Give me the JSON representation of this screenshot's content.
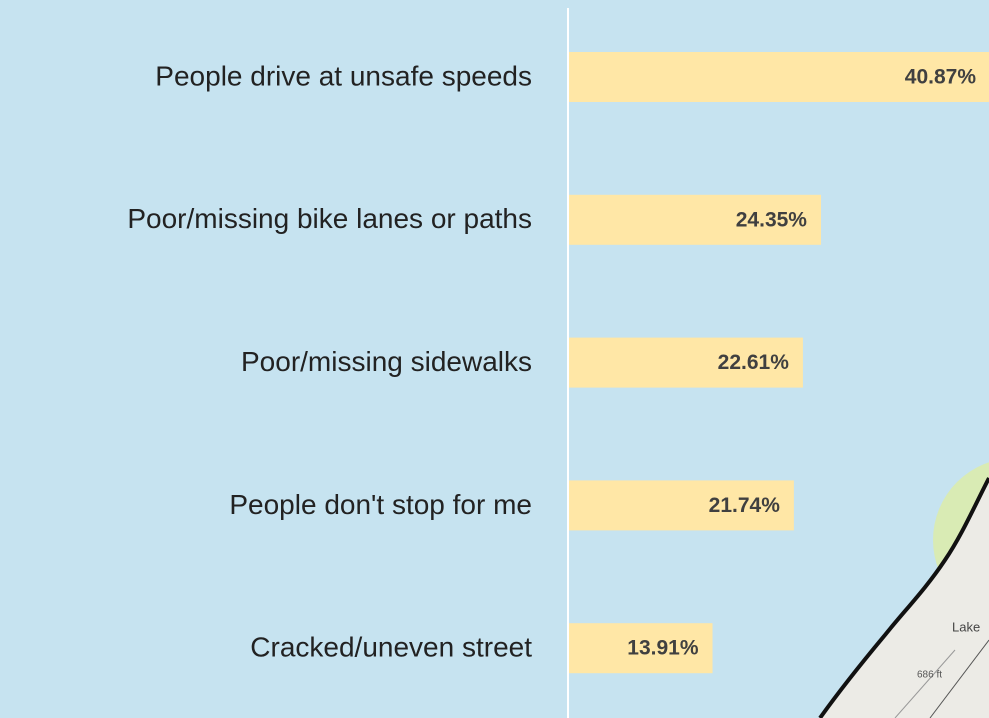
{
  "chart_data": {
    "type": "barh",
    "categories": [
      "People drive at unsafe speeds",
      "Poor/missing bike lanes or paths",
      "Poor/missing sidewalks",
      "People don't stop for me",
      "Cracked/uneven street"
    ],
    "values": [
      40.87,
      24.35,
      22.61,
      21.74,
      13.91
    ],
    "value_labels": [
      "40.87%",
      "24.35%",
      "22.61%",
      "21.74%",
      "13.91%"
    ],
    "color": "#ffe7a6"
  },
  "map": {
    "labels": [
      "Lake",
      "686 ft"
    ]
  }
}
